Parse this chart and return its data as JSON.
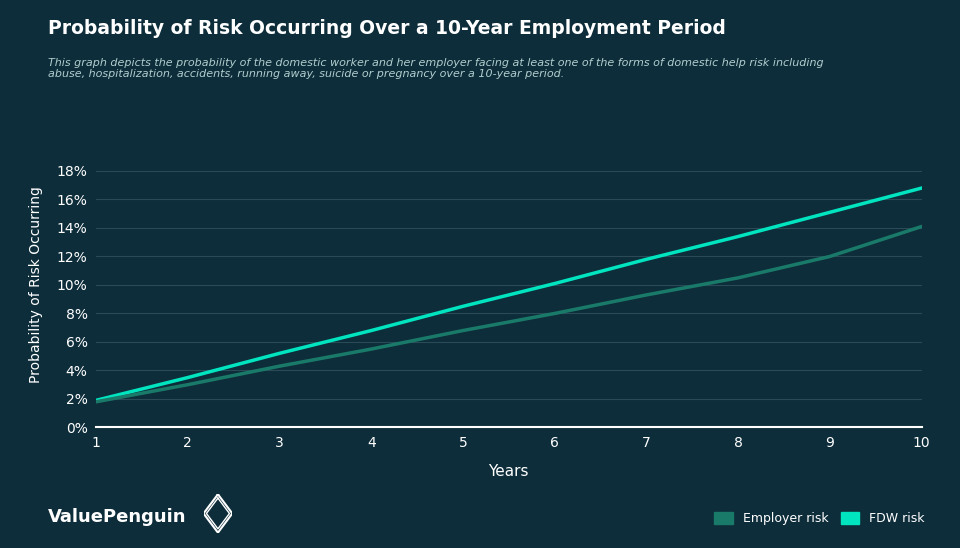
{
  "title": "Probability of Risk Occurring Over a 10-Year Employment Period",
  "subtitle": "This graph depicts the probability of the domestic worker and her employer facing at least one of the forms of domestic help risk including\nabuse, hospitalization, accidents, running away, suicide or pregnancy over a 10-year period.",
  "xlabel": "Years",
  "ylabel": "Probability of Risk Occurring",
  "background_color": "#0d2d3a",
  "plot_bg_color": "#0d2d3a",
  "grid_color": "#2a4a58",
  "text_color": "#ffffff",
  "axis_line_color": "#ffffff",
  "years": [
    1,
    2,
    3,
    4,
    5,
    6,
    7,
    8,
    9,
    10
  ],
  "fdw_risk": [
    0.019,
    0.035,
    0.052,
    0.068,
    0.085,
    0.101,
    0.118,
    0.134,
    0.151,
    0.168
  ],
  "employer_risk": [
    0.018,
    0.03,
    0.043,
    0.055,
    0.068,
    0.08,
    0.093,
    0.105,
    0.12,
    0.141
  ],
  "fdw_color": "#00e5c0",
  "employer_color": "#1a7a6a",
  "ylim": [
    0,
    0.2
  ],
  "yticks": [
    0.0,
    0.02,
    0.04,
    0.06,
    0.08,
    0.1,
    0.12,
    0.14,
    0.16,
    0.18
  ],
  "legend_employer": "Employer risk",
  "legend_fdw": "FDW risk",
  "logo_text": "ValuePenguin",
  "line_width": 2.5
}
